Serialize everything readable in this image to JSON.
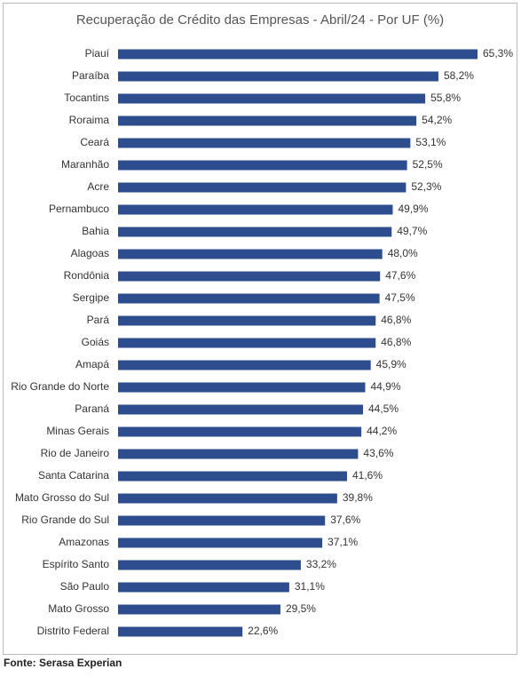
{
  "chart_data": {
    "type": "bar",
    "orientation": "horizontal",
    "title": "Recuperação de Crédito das Empresas - Abril/24 - Por UF (%)",
    "categories": [
      "Piauí",
      "Paraíba",
      "Tocantins",
      "Roraima",
      "Ceará",
      "Maranhão",
      "Acre",
      "Pernambuco",
      "Bahia",
      "Alagoas",
      "Rondônia",
      "Sergipe",
      "Pará",
      "Goiás",
      "Amapá",
      "Rio Grande do Norte",
      "Paraná",
      "Minas Gerais",
      "Rio de Janeiro",
      "Santa Catarina",
      "Mato Grosso do Sul",
      "Rio Grande do Sul",
      "Amazonas",
      "Espírito Santo",
      "São Paulo",
      "Mato Grosso",
      "Distrito Federal"
    ],
    "values": [
      65.3,
      58.2,
      55.8,
      54.2,
      53.1,
      52.5,
      52.3,
      49.9,
      49.7,
      48.0,
      47.6,
      47.5,
      46.8,
      46.8,
      45.9,
      44.9,
      44.5,
      44.2,
      43.6,
      41.6,
      39.8,
      37.6,
      37.1,
      33.2,
      31.1,
      29.5,
      22.6
    ],
    "value_labels": [
      "65,3%",
      "58,2%",
      "55,8%",
      "54,2%",
      "53,1%",
      "52,5%",
      "52,3%",
      "49,9%",
      "49,7%",
      "48,0%",
      "47,6%",
      "47,5%",
      "46,8%",
      "46,8%",
      "45,9%",
      "44,9%",
      "44,5%",
      "44,2%",
      "43,6%",
      "41,6%",
      "39,8%",
      "37,6%",
      "37,1%",
      "33,2%",
      "31,1%",
      "29,5%",
      "22,6%"
    ],
    "color": "#2e4d8f",
    "source": "Fonte: Serasa Experian"
  }
}
